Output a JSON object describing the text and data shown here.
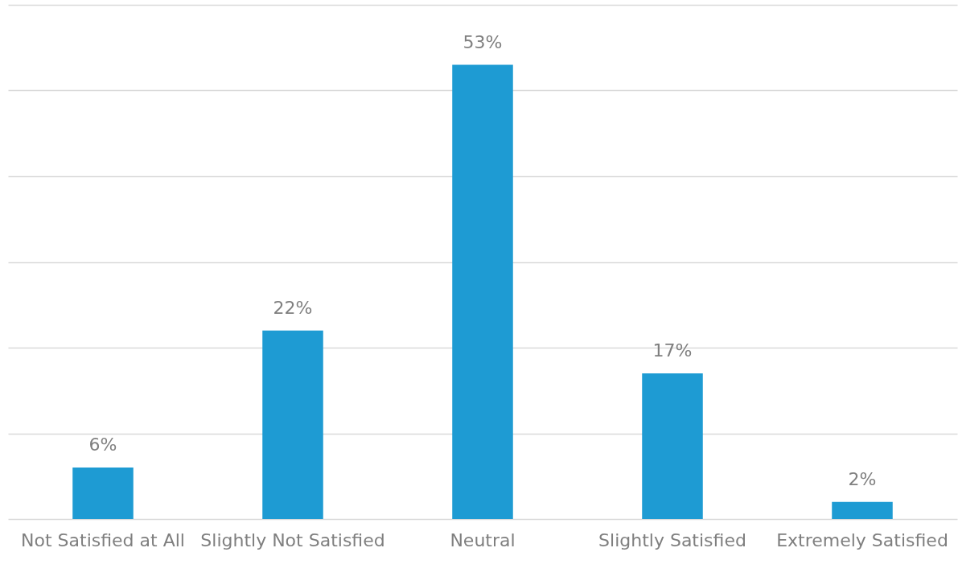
{
  "chart_data": {
    "type": "bar",
    "categories": [
      "Not Satisfied at All",
      "Slightly Not Satisfied",
      "Neutral",
      "Slightly Satisfied",
      "Extremely Satisfied"
    ],
    "values": [
      6,
      22,
      53,
      17,
      2
    ],
    "value_labels": [
      "6%",
      "22%",
      "53%",
      "17%",
      "2%"
    ],
    "color": "#1e9bd3",
    "ylim": [
      0,
      60
    ],
    "yticks": [
      {
        "value": 0,
        "label": null
      },
      {
        "value": 10,
        "label": null
      },
      {
        "value": 20,
        "label": null
      },
      {
        "value": 30,
        "label": null
      },
      {
        "value": 40,
        "label": null
      },
      {
        "value": 50,
        "label": null
      },
      {
        "value": 60,
        "label": null
      }
    ],
    "grid": "y",
    "tick_labels": "x"
  }
}
